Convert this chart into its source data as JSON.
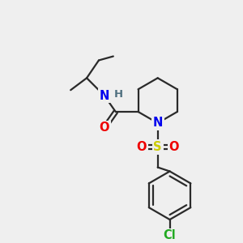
{
  "bg_color": "#efefef",
  "line_color": "#2a2a2a",
  "bond_width": 1.6,
  "atom_colors": {
    "N": "#0000ee",
    "O": "#ee0000",
    "S": "#cccc00",
    "Cl": "#22aa22",
    "H": "#507080",
    "C": "#2a2a2a"
  },
  "font_size": 10.5
}
